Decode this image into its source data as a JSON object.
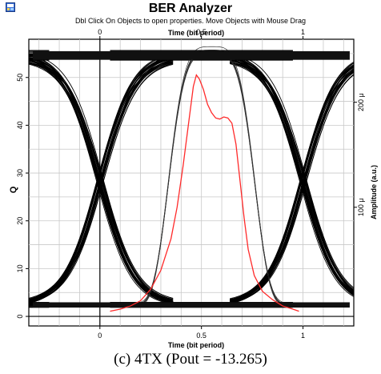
{
  "window": {
    "title": "BER Analyzer",
    "hint": "Dbl Click On Objects to open properties.  Move Objects with Mouse Drag",
    "app_icon": "analyzer-app-icon"
  },
  "caption": "(c) 4TX (Pout = -13.265)",
  "chart_data": {
    "type": "line",
    "subtype": "eye-diagram",
    "x_label_top": "Time (bit period)",
    "x_label_bottom": "Time (bit period)",
    "y_label_left": "Q",
    "y_label_right": "Amplitude (a.u.)",
    "xlim": [
      -0.35,
      1.25
    ],
    "ylim": [
      -2,
      58
    ],
    "x_ticks": [
      0,
      0.5,
      1
    ],
    "x_tick_labels": [
      "0",
      "0.5",
      "1"
    ],
    "y_ticks": [
      0,
      10,
      20,
      30,
      40,
      50
    ],
    "y_tick_labels": [
      "0",
      "10",
      "20",
      "30",
      "40",
      "50"
    ],
    "right_ticks": [
      100,
      200
    ],
    "right_tick_labels": [
      "100 μ",
      "200 μ"
    ],
    "right_ylim": [
      -13,
      260
    ],
    "grid": true,
    "eye": {
      "high_level": 54.6,
      "high_spread": 1.1,
      "low_level": 2.4,
      "low_spread": 0.6,
      "crossing_times": [
        0,
        1
      ],
      "crossing_level": 28.5,
      "bit_start": 0.03,
      "bit_end": 0.97,
      "rising_transition_peak": 55.6,
      "trace_color": "#000000"
    },
    "q_factor_curve": {
      "color": "#ff2a2a",
      "x": [
        0.05,
        0.1,
        0.15,
        0.2,
        0.25,
        0.3,
        0.35,
        0.38,
        0.41,
        0.44,
        0.46,
        0.475,
        0.49,
        0.51,
        0.53,
        0.55,
        0.57,
        0.59,
        0.61,
        0.63,
        0.65,
        0.67,
        0.69,
        0.71,
        0.73,
        0.76,
        0.8,
        0.85,
        0.9,
        0.95,
        0.98
      ],
      "y": [
        1,
        3,
        6,
        11,
        22,
        40,
        70,
        100,
        140,
        185,
        215,
        226,
        222,
        212,
        198,
        190,
        185,
        184,
        186,
        185,
        180,
        160,
        125,
        90,
        60,
        35,
        20,
        12,
        6,
        3,
        1
      ]
    }
  }
}
